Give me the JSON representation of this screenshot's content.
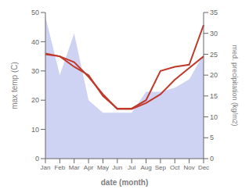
{
  "chart_data": {
    "type": "line",
    "categories": [
      "Jan",
      "Feb",
      "Mar",
      "Apr",
      "May",
      "Jun",
      "Jul",
      "Aug",
      "Sep",
      "Oct",
      "Nov",
      "Dec"
    ],
    "xlabel": "date (month)",
    "ylabel": "max temp (C)",
    "y2label": "med. precipitation (kg/m2)",
    "ylim": [
      0,
      50
    ],
    "yticks": [
      0,
      10,
      20,
      30,
      40,
      50
    ],
    "y2lim": [
      0,
      35
    ],
    "y2ticks": [
      0,
      5,
      10,
      15,
      20,
      25,
      30,
      35
    ],
    "grid": false,
    "series": [
      {
        "type": "area",
        "color": "#b3bcee",
        "axis": "y2",
        "values": [
          34,
          20,
          30,
          14,
          11,
          11,
          11,
          16,
          16,
          17,
          19,
          25
        ]
      },
      {
        "type": "line",
        "color": "#c0392b",
        "values": [
          36,
          35,
          33,
          28,
          22,
          17,
          17,
          19,
          22,
          27,
          31,
          35
        ]
      },
      {
        "type": "line",
        "color": "#c0392b",
        "axis": "y2",
        "values": [
          25,
          24.5,
          22,
          20,
          15,
          12,
          12,
          14,
          21,
          22,
          22.5,
          32
        ]
      }
    ]
  }
}
